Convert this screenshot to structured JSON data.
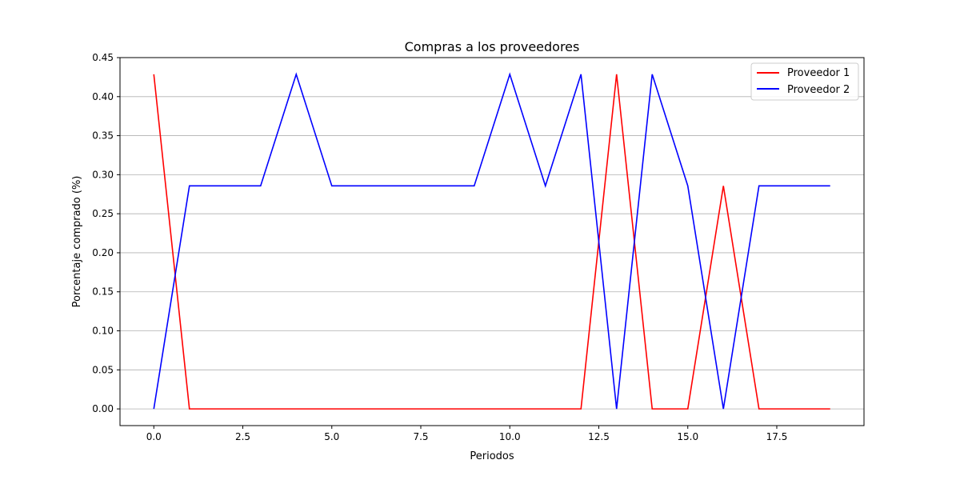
{
  "chart_data": {
    "type": "line",
    "title": "Compras a los proveedores",
    "xlabel": "Periodos",
    "ylabel": "Porcentaje comprado (%)",
    "xlim": [
      -0.95,
      19.95
    ],
    "ylim": [
      -0.0214,
      0.45
    ],
    "xticks": [
      0,
      2.5,
      5,
      7.5,
      10,
      12.5,
      15,
      17.5
    ],
    "xtick_labels": [
      "0.0",
      "2.5",
      "5.0",
      "7.5",
      "10.0",
      "12.5",
      "15.0",
      "17.5"
    ],
    "yticks": [
      0,
      0.05,
      0.1,
      0.15,
      0.2,
      0.25,
      0.3,
      0.35,
      0.4,
      0.45
    ],
    "ytick_labels": [
      "0.00",
      "0.05",
      "0.10",
      "0.15",
      "0.20",
      "0.25",
      "0.30",
      "0.35",
      "0.40",
      "0.45"
    ],
    "grid": "horizontal",
    "legend_position": "top-right",
    "x": [
      0,
      1,
      2,
      3,
      4,
      5,
      6,
      7,
      8,
      9,
      10,
      11,
      12,
      13,
      14,
      15,
      16,
      17,
      18,
      19
    ],
    "series": [
      {
        "name": "Proveedor 1",
        "color": "#ff0000",
        "values": [
          0.4286,
          0,
          0,
          0,
          0,
          0,
          0,
          0,
          0,
          0,
          0,
          0,
          0,
          0.4286,
          0,
          0,
          0.2857,
          0,
          0,
          0
        ]
      },
      {
        "name": "Proveedor 2",
        "color": "#0000ff",
        "values": [
          0,
          0.2857,
          0.2857,
          0.2857,
          0.4286,
          0.2857,
          0.2857,
          0.2857,
          0.2857,
          0.2857,
          0.4286,
          0.2857,
          0.4286,
          0,
          0.4286,
          0.2857,
          0,
          0.2857,
          0.2857,
          0.2857
        ]
      }
    ]
  }
}
